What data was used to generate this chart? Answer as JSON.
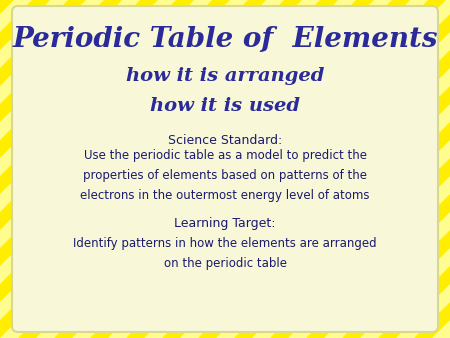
{
  "title_line1": "Periodic Table of  Elements",
  "title_line2": "how it is arranged",
  "title_line3": "how it is used",
  "title_color": "#2a2a9a",
  "science_standard_label": "Science Standard:",
  "science_standard_text": "Use the periodic table as a model to predict the\nproperties of elements based on patterns of the\nelectrons in the outermost energy level of atoms",
  "learning_target_label": "Learning Target:",
  "learning_target_text": "Identify patterns in how the elements are arranged\non the periodic table",
  "body_text_color": "#1a1a6e",
  "stripe_yellow": "#ffee00",
  "stripe_white": "#ffff99",
  "card_bg": "#f8f8d8",
  "card_edge": "#d8d890",
  "fig_bg": "#ffee00",
  "figsize": [
    4.5,
    3.38
  ],
  "dpi": 100
}
